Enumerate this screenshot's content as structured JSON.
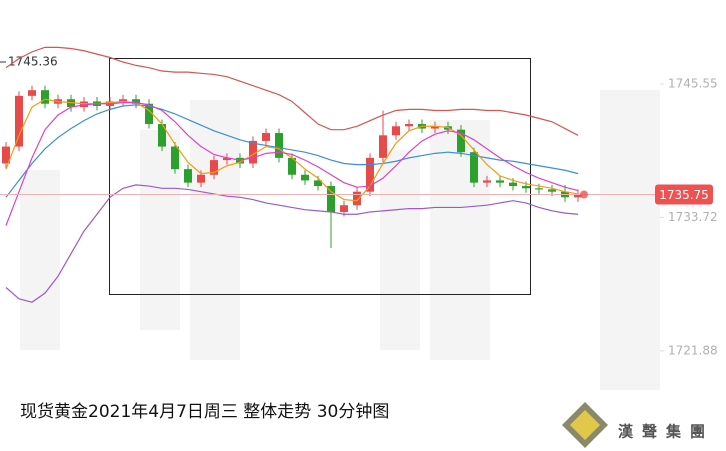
{
  "chart_data": {
    "type": "candlestick",
    "title": "现货黄金2021年4月7日周三  整体走势 30分钟图",
    "logo": "漢聲集團",
    "high_marker": 1745.36,
    "last_price": 1735.75,
    "ylim": [
      1713,
      1753
    ],
    "yticks": [
      1745.55,
      1733.72,
      1721.88
    ],
    "grid": false,
    "up_color": "#e84a4a",
    "down_color": "#2ca02c",
    "open": [
      1738.5,
      1740.0,
      1744.5,
      1745.0,
      1743.8,
      1744.2,
      1743.5,
      1744.0,
      1743.6,
      1744.0,
      1744.2,
      1743.8,
      1742.0,
      1740.0,
      1738.0,
      1736.8,
      1737.5,
      1738.8,
      1739.0,
      1738.5,
      1740.5,
      1741.2,
      1739.0,
      1737.5,
      1737.0,
      1736.5,
      1734.2,
      1734.8,
      1736.0,
      1739.0,
      1741.0,
      1741.8,
      1742.0,
      1741.6,
      1741.8,
      1741.5,
      1739.5,
      1736.8,
      1737.0,
      1736.8,
      1736.5,
      1736.3,
      1736.2,
      1736.0,
      1735.5
    ],
    "high": [
      1740.4,
      1744.9,
      1745.4,
      1745.4,
      1744.6,
      1744.6,
      1744.4,
      1744.4,
      1744.4,
      1744.6,
      1744.6,
      1744.2,
      1742.4,
      1740.4,
      1738.4,
      1737.9,
      1739.2,
      1739.4,
      1739.4,
      1740.9,
      1741.6,
      1741.6,
      1739.4,
      1737.9,
      1737.4,
      1736.9,
      1735.2,
      1736.4,
      1739.4,
      1743.2,
      1742.2,
      1742.4,
      1742.4,
      1742.2,
      1742.2,
      1741.9,
      1739.9,
      1737.4,
      1737.4,
      1737.2,
      1736.9,
      1736.7,
      1736.6,
      1736.6,
      1736.2
    ],
    "low": [
      1738.1,
      1739.6,
      1744.1,
      1743.4,
      1743.4,
      1743.1,
      1743.1,
      1743.2,
      1743.2,
      1743.6,
      1743.4,
      1741.6,
      1739.6,
      1737.6,
      1736.4,
      1736.4,
      1737.1,
      1738.4,
      1738.1,
      1738.1,
      1740.1,
      1738.6,
      1737.1,
      1736.6,
      1736.1,
      1731.0,
      1733.8,
      1734.4,
      1735.6,
      1738.6,
      1740.6,
      1741.4,
      1741.2,
      1741.2,
      1741.1,
      1739.1,
      1736.4,
      1736.4,
      1736.4,
      1736.1,
      1735.9,
      1735.8,
      1735.6,
      1735.1,
      1735.1
    ],
    "close": [
      1740.0,
      1744.5,
      1745.0,
      1743.8,
      1744.2,
      1743.5,
      1744.0,
      1743.6,
      1744.0,
      1744.2,
      1743.8,
      1742.0,
      1740.0,
      1738.0,
      1736.8,
      1737.5,
      1738.8,
      1739.0,
      1738.5,
      1740.5,
      1741.2,
      1739.0,
      1737.5,
      1737.0,
      1736.5,
      1734.2,
      1734.8,
      1736.0,
      1739.0,
      1741.0,
      1741.8,
      1742.0,
      1741.6,
      1741.8,
      1741.5,
      1739.5,
      1736.8,
      1737.0,
      1736.8,
      1736.5,
      1736.3,
      1736.2,
      1736.0,
      1735.5,
      1735.75
    ],
    "overlays": [
      {
        "color": "#d9534f",
        "values": [
          1747.0,
          1747.8,
          1748.4,
          1748.8,
          1748.8,
          1748.7,
          1748.5,
          1748.2,
          1747.9,
          1747.5,
          1747.2,
          1747.0,
          1746.7,
          1746.6,
          1746.6,
          1746.5,
          1746.4,
          1746.2,
          1745.8,
          1745.4,
          1745.0,
          1744.6,
          1744.0,
          1743.0,
          1742.0,
          1741.5,
          1741.5,
          1741.8,
          1742.3,
          1742.8,
          1743.2,
          1743.3,
          1743.3,
          1743.2,
          1743.2,
          1743.3,
          1743.3,
          1743.2,
          1743.2,
          1743.0,
          1742.8,
          1742.5,
          1742.2,
          1741.6,
          1741.0
        ]
      },
      {
        "color": "#3a8fd9",
        "values": [
          1735.5,
          1737.0,
          1738.5,
          1739.8,
          1740.8,
          1741.6,
          1742.3,
          1742.9,
          1743.3,
          1743.6,
          1743.7,
          1743.6,
          1743.3,
          1742.9,
          1742.4,
          1741.9,
          1741.4,
          1741.0,
          1740.6,
          1740.3,
          1740.1,
          1739.9,
          1739.7,
          1739.5,
          1739.2,
          1738.8,
          1738.5,
          1738.4,
          1738.4,
          1738.5,
          1738.7,
          1739.0,
          1739.2,
          1739.4,
          1739.5,
          1739.4,
          1739.2,
          1739.0,
          1738.8,
          1738.7,
          1738.5,
          1738.3,
          1738.1,
          1737.9,
          1737.6
        ]
      },
      {
        "color": "#9b59d0",
        "values": [
          1727.5,
          1726.5,
          1726.2,
          1727.0,
          1728.5,
          1730.5,
          1732.5,
          1734.0,
          1735.5,
          1736.3,
          1736.6,
          1736.5,
          1736.3,
          1736.3,
          1736.2,
          1736.0,
          1735.8,
          1735.6,
          1735.5,
          1735.3,
          1735.0,
          1734.8,
          1734.6,
          1734.4,
          1734.3,
          1734.2,
          1734.0,
          1734.0,
          1734.2,
          1734.3,
          1734.4,
          1734.5,
          1734.5,
          1734.6,
          1734.6,
          1734.6,
          1734.7,
          1734.8,
          1735.0,
          1735.2,
          1735.0,
          1734.6,
          1734.3,
          1734.1,
          1734.0
        ]
      },
      {
        "color": "#f39c12",
        "values": [
          1738.0,
          1741.0,
          1743.5,
          1744.2,
          1744.0,
          1743.9,
          1743.8,
          1743.8,
          1743.9,
          1744.0,
          1743.9,
          1743.2,
          1742.0,
          1740.2,
          1738.6,
          1737.6,
          1737.7,
          1738.3,
          1738.6,
          1739.3,
          1740.0,
          1739.8,
          1739.0,
          1738.0,
          1737.2,
          1736.0,
          1735.3,
          1735.2,
          1736.5,
          1738.5,
          1740.3,
          1741.4,
          1741.8,
          1741.8,
          1741.7,
          1741.0,
          1739.7,
          1738.4,
          1737.4,
          1737.0,
          1736.7,
          1736.5,
          1736.3,
          1736.0,
          1735.8
        ]
      },
      {
        "color": "#e040c8",
        "values": [
          1733.0,
          1736.0,
          1739.0,
          1741.5,
          1742.8,
          1743.5,
          1743.7,
          1743.8,
          1743.8,
          1743.9,
          1743.9,
          1743.7,
          1743.2,
          1742.2,
          1741.0,
          1740.0,
          1739.3,
          1739.0,
          1738.8,
          1739.0,
          1739.4,
          1739.5,
          1739.3,
          1738.8,
          1738.2,
          1737.5,
          1736.8,
          1736.4,
          1736.5,
          1737.2,
          1738.3,
          1739.5,
          1740.5,
          1741.1,
          1741.4,
          1741.2,
          1740.6,
          1739.8,
          1739.0,
          1738.3,
          1737.7,
          1737.2,
          1736.8,
          1736.4,
          1736.1
        ]
      }
    ]
  }
}
